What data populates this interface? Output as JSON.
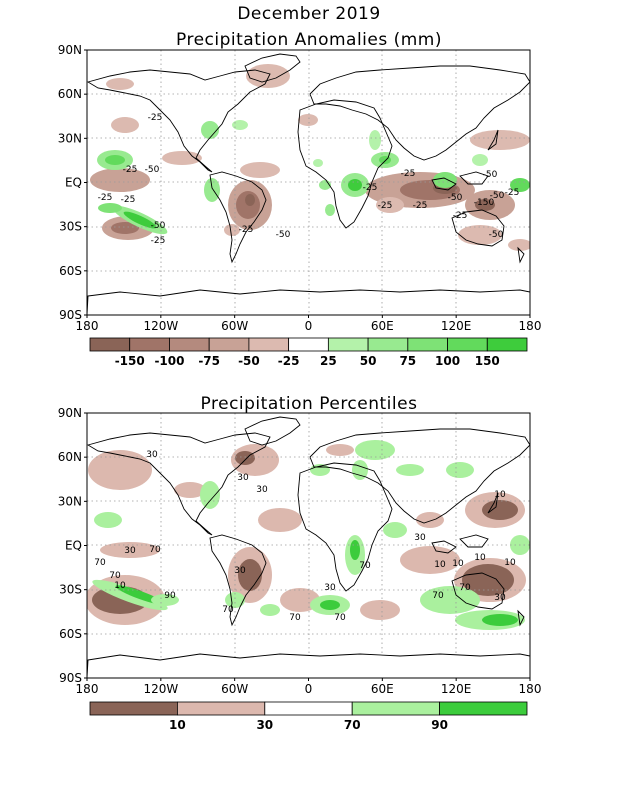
{
  "page": {
    "title_line1": "December 2019",
    "title_line2": "Precipitation Anomalies (mm)",
    "title_percentiles": "Precipitation Percentiles"
  },
  "axes": {
    "lat_labels": [
      "90N",
      "60N",
      "30N",
      "EQ",
      "30S",
      "60S",
      "90S"
    ],
    "lon_labels": [
      "180",
      "120W",
      "60W",
      "0",
      "60E",
      "120E",
      "180"
    ]
  },
  "colors": {
    "dry_dark": "#8a6457",
    "dry_mid": "#a97e72",
    "dry_light": "#c29c91",
    "dry_pale": "#dcb8ae",
    "wet_pale": "#a8f0a0",
    "wet_light": "#8ee886",
    "wet_mid": "#72e06c",
    "wet_strong": "#56d652",
    "wet_dark": "#38c838"
  },
  "anomaly_legend": {
    "labels": [
      "-150",
      "-100",
      "-75",
      "-50",
      "-25",
      "25",
      "50",
      "75",
      "100",
      "150"
    ],
    "swatches": [
      "#8a6457",
      "#a07468",
      "#b48a7e",
      "#c8a296",
      "#dcbab0",
      "#ffffff",
      "#b4f2aa",
      "#98ea90",
      "#7ee276",
      "#62da5c",
      "#3ecc3c"
    ]
  },
  "percentile_legend": {
    "labels": [
      "10",
      "30",
      "70",
      "90"
    ],
    "swatches": [
      "#8a6457",
      "#dcb8ae",
      "#ffffff",
      "#aaf09e",
      "#3ccc3c"
    ]
  },
  "contour_labels_anomaly": [
    "-25",
    "-25",
    "-50",
    "-25",
    "-25",
    "-50",
    "-25",
    "-25",
    "-50",
    "-25",
    "-25",
    "-25",
    "-50",
    "-50",
    "-150",
    "-25",
    "-50",
    "-25",
    "-25",
    "-50"
  ],
  "contour_labels_percentile": [
    "30",
    "30",
    "30",
    "30",
    "70",
    "70",
    "30",
    "10",
    "10",
    "10",
    "70",
    "90",
    "70",
    "70",
    "70",
    "30",
    "10",
    "10",
    "70",
    "70",
    "30",
    "70",
    "10",
    "30"
  ]
}
